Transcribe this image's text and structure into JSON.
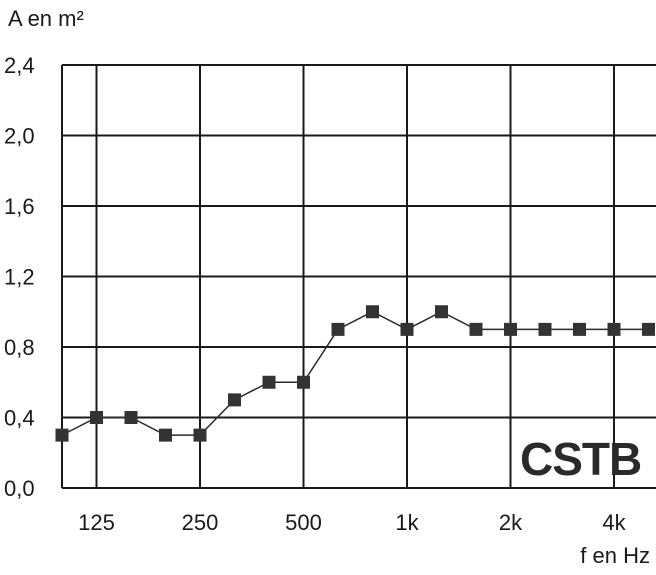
{
  "chart_data": {
    "type": "line",
    "title": "",
    "ylabel": "A en m²",
    "xlabel": "f en Hz",
    "ylim": [
      0,
      2.4
    ],
    "yticks": [
      "0,0",
      "0,4",
      "0,8",
      "1,2",
      "1,6",
      "2,0",
      "2,4"
    ],
    "xtick_labels": [
      "125",
      "250",
      "500",
      "1k",
      "2k",
      "4k"
    ],
    "x": [
      "100",
      "125",
      "160",
      "200",
      "250",
      "315",
      "400",
      "500",
      "630",
      "800",
      "1000",
      "1250",
      "1600",
      "2000",
      "2500",
      "3150",
      "4000",
      "5000"
    ],
    "series": [
      {
        "values": [
          0.3,
          0.4,
          0.4,
          0.3,
          0.3,
          0.5,
          0.6,
          0.6,
          0.9,
          1.0,
          0.9,
          1.0,
          0.9,
          0.9,
          0.9,
          0.9,
          0.9,
          0.9
        ]
      }
    ],
    "grid": true,
    "logo": "CSTB",
    "colors": {
      "line": "#2a2a2a",
      "marker": "#333333",
      "grid": "#1a1a1a"
    }
  }
}
